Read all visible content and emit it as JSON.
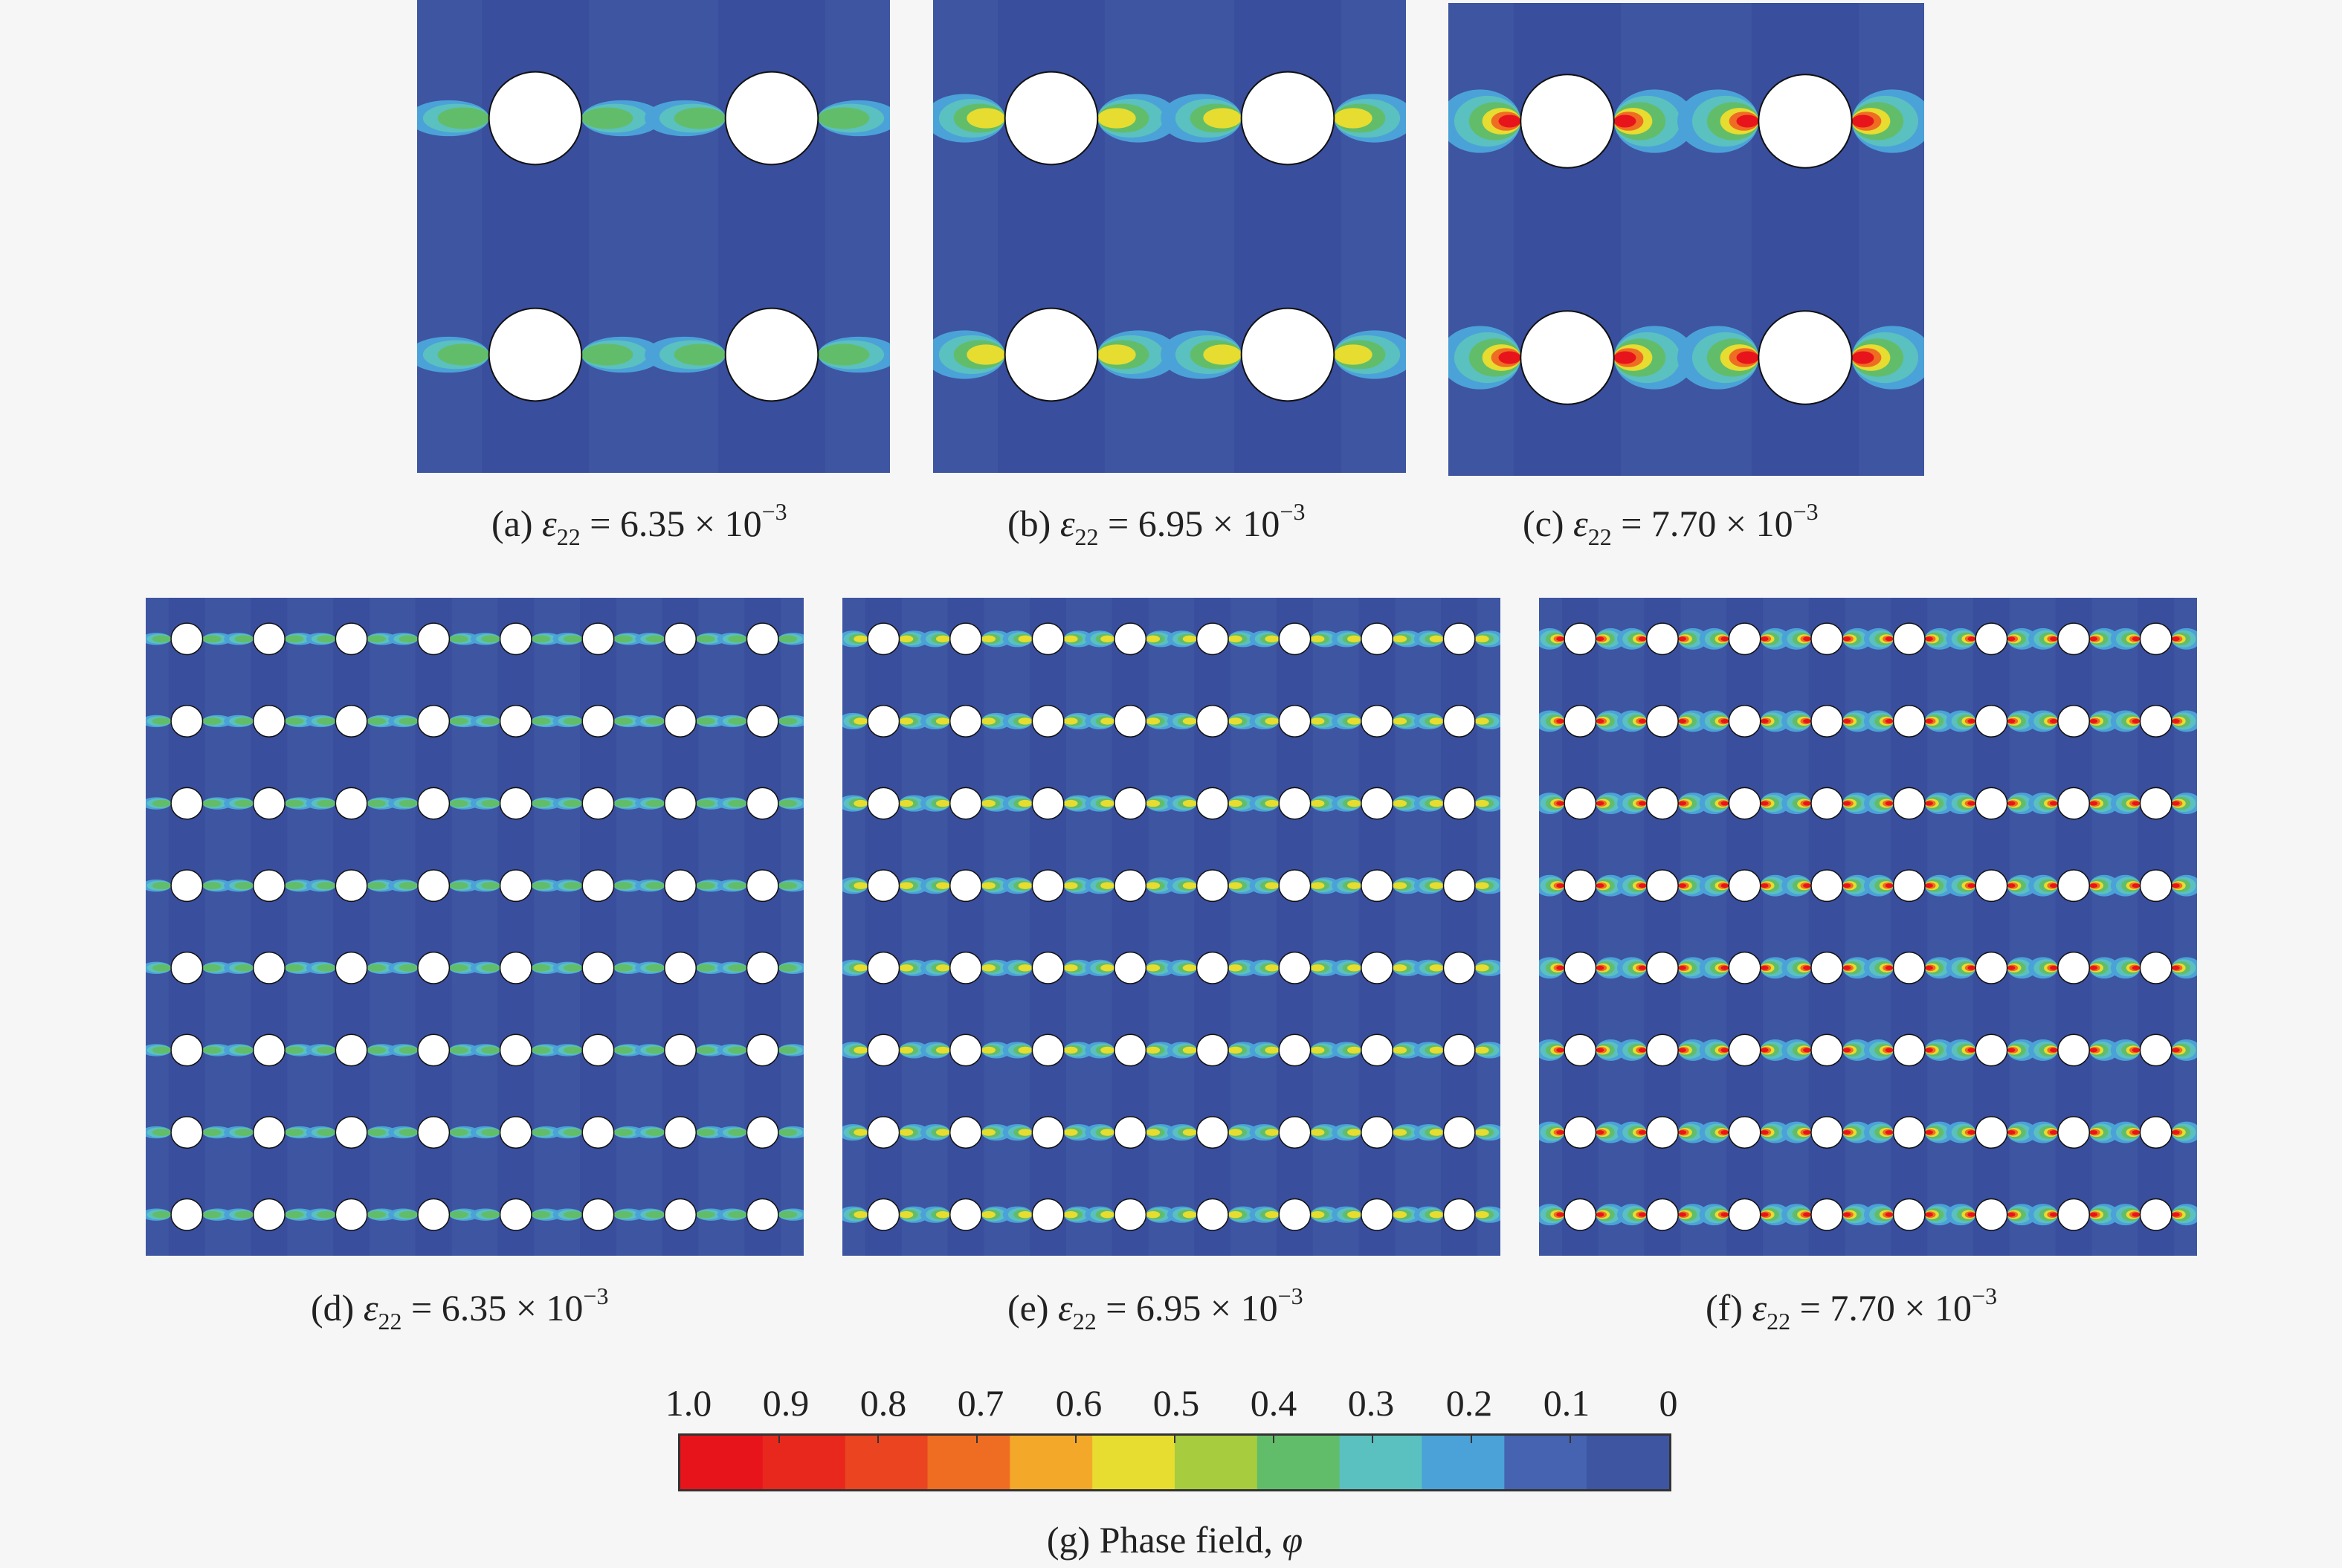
{
  "panels": [
    {
      "id": "a",
      "label": "(a)",
      "strain_symbol": "ε",
      "strain_sub": "22",
      "strain_value": "= 6.35 × 10",
      "strain_exp": "−3",
      "damage_level": 0.25,
      "grid": 2
    },
    {
      "id": "b",
      "label": "(b)",
      "strain_symbol": "ε",
      "strain_sub": "22",
      "strain_value": "= 6.95 × 10",
      "strain_exp": "−3",
      "damage_level": 0.55,
      "grid": 2
    },
    {
      "id": "c",
      "label": "(c)",
      "strain_symbol": "ε",
      "strain_sub": "22",
      "strain_value": "= 7.70 × 10",
      "strain_exp": "−3",
      "damage_level": 0.9,
      "grid": 2
    },
    {
      "id": "d",
      "label": "(d)",
      "strain_symbol": "ε",
      "strain_sub": "22",
      "strain_value": "= 6.35 × 10",
      "strain_exp": "−3",
      "damage_level": 0.25,
      "grid": 8
    },
    {
      "id": "e",
      "label": "(e)",
      "strain_symbol": "ε",
      "strain_sub": "22",
      "strain_value": "= 6.95 × 10",
      "strain_exp": "−3",
      "damage_level": 0.55,
      "grid": 8
    },
    {
      "id": "f",
      "label": "(f)",
      "strain_symbol": "ε",
      "strain_sub": "22",
      "strain_value": "= 7.70 × 10",
      "strain_exp": "−3",
      "damage_level": 0.9,
      "grid": 8
    }
  ],
  "colorbar": {
    "ticks": [
      "1.0",
      "0.9",
      "0.8",
      "0.7",
      "0.6",
      "0.5",
      "0.4",
      "0.3",
      "0.2",
      "0.1",
      "0"
    ],
    "colors": [
      "#e8141c",
      "#e8281c",
      "#ea4420",
      "#ef6d22",
      "#f4a82a",
      "#e7dc30",
      "#a7cc3e",
      "#62bd6a",
      "#5bc0c0",
      "#4ba2d8",
      "#4563b0",
      "#3e55a1"
    ],
    "label": "(g) Phase field,",
    "symbol": "φ"
  }
}
